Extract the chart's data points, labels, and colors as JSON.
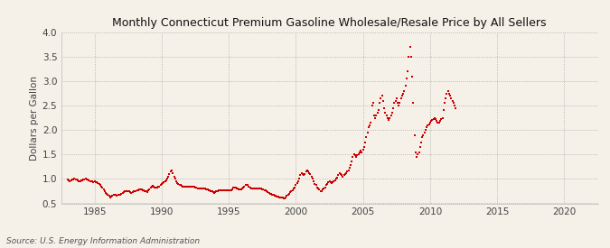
{
  "title": "Monthly Connecticut Premium Gasoline Wholesale/Resale Price by All Sellers",
  "ylabel": "Dollars per Gallon",
  "source": "Source: U.S. Energy Information Administration",
  "background_color": "#f5f0e8",
  "plot_bg_color": "#f5f0e8",
  "marker_color": "#cc0000",
  "xlim": [
    1982.5,
    2022.5
  ],
  "ylim": [
    0.5,
    4.0
  ],
  "xticks": [
    1985,
    1990,
    1995,
    2000,
    2005,
    2010,
    2015,
    2020
  ],
  "yticks": [
    0.5,
    1.0,
    1.5,
    2.0,
    2.5,
    3.0,
    3.5,
    4.0
  ],
  "data": [
    [
      1983.0,
      0.98
    ],
    [
      1983.08,
      0.97
    ],
    [
      1983.17,
      0.96
    ],
    [
      1983.25,
      0.97
    ],
    [
      1983.33,
      0.98
    ],
    [
      1983.42,
      0.99
    ],
    [
      1983.5,
      1.0
    ],
    [
      1983.58,
      0.99
    ],
    [
      1983.67,
      0.98
    ],
    [
      1983.75,
      0.97
    ],
    [
      1983.83,
      0.96
    ],
    [
      1983.92,
      0.95
    ],
    [
      1984.0,
      0.97
    ],
    [
      1984.08,
      0.97
    ],
    [
      1984.17,
      0.98
    ],
    [
      1984.25,
      0.99
    ],
    [
      1984.33,
      1.0
    ],
    [
      1984.42,
      0.99
    ],
    [
      1984.5,
      0.98
    ],
    [
      1984.58,
      0.97
    ],
    [
      1984.67,
      0.96
    ],
    [
      1984.75,
      0.96
    ],
    [
      1984.83,
      0.95
    ],
    [
      1984.92,
      0.94
    ],
    [
      1985.0,
      0.95
    ],
    [
      1985.08,
      0.94
    ],
    [
      1985.17,
      0.93
    ],
    [
      1985.25,
      0.92
    ],
    [
      1985.33,
      0.9
    ],
    [
      1985.42,
      0.88
    ],
    [
      1985.5,
      0.85
    ],
    [
      1985.58,
      0.82
    ],
    [
      1985.67,
      0.78
    ],
    [
      1985.75,
      0.74
    ],
    [
      1985.83,
      0.72
    ],
    [
      1985.92,
      0.7
    ],
    [
      1986.0,
      0.68
    ],
    [
      1986.08,
      0.65
    ],
    [
      1986.17,
      0.62
    ],
    [
      1986.25,
      0.63
    ],
    [
      1986.33,
      0.65
    ],
    [
      1986.42,
      0.67
    ],
    [
      1986.5,
      0.68
    ],
    [
      1986.58,
      0.67
    ],
    [
      1986.67,
      0.66
    ],
    [
      1986.75,
      0.67
    ],
    [
      1986.83,
      0.68
    ],
    [
      1986.92,
      0.68
    ],
    [
      1987.0,
      0.7
    ],
    [
      1987.08,
      0.72
    ],
    [
      1987.17,
      0.73
    ],
    [
      1987.25,
      0.74
    ],
    [
      1987.33,
      0.74
    ],
    [
      1987.42,
      0.75
    ],
    [
      1987.5,
      0.75
    ],
    [
      1987.58,
      0.74
    ],
    [
      1987.67,
      0.73
    ],
    [
      1987.75,
      0.72
    ],
    [
      1987.83,
      0.73
    ],
    [
      1987.92,
      0.74
    ],
    [
      1988.0,
      0.75
    ],
    [
      1988.08,
      0.75
    ],
    [
      1988.17,
      0.76
    ],
    [
      1988.25,
      0.77
    ],
    [
      1988.33,
      0.78
    ],
    [
      1988.42,
      0.79
    ],
    [
      1988.5,
      0.78
    ],
    [
      1988.58,
      0.77
    ],
    [
      1988.67,
      0.76
    ],
    [
      1988.75,
      0.75
    ],
    [
      1988.83,
      0.74
    ],
    [
      1988.92,
      0.73
    ],
    [
      1989.0,
      0.76
    ],
    [
      1989.08,
      0.79
    ],
    [
      1989.17,
      0.82
    ],
    [
      1989.25,
      0.85
    ],
    [
      1989.33,
      0.86
    ],
    [
      1989.42,
      0.85
    ],
    [
      1989.5,
      0.83
    ],
    [
      1989.58,
      0.82
    ],
    [
      1989.67,
      0.83
    ],
    [
      1989.75,
      0.84
    ],
    [
      1989.83,
      0.85
    ],
    [
      1989.92,
      0.87
    ],
    [
      1990.0,
      0.9
    ],
    [
      1990.08,
      0.92
    ],
    [
      1990.17,
      0.93
    ],
    [
      1990.25,
      0.95
    ],
    [
      1990.33,
      0.97
    ],
    [
      1990.42,
      1.0
    ],
    [
      1990.5,
      1.05
    ],
    [
      1990.58,
      1.1
    ],
    [
      1990.67,
      1.15
    ],
    [
      1990.75,
      1.18
    ],
    [
      1990.83,
      1.12
    ],
    [
      1990.92,
      1.05
    ],
    [
      1991.0,
      1.0
    ],
    [
      1991.08,
      0.95
    ],
    [
      1991.17,
      0.92
    ],
    [
      1991.25,
      0.9
    ],
    [
      1991.33,
      0.88
    ],
    [
      1991.42,
      0.87
    ],
    [
      1991.5,
      0.86
    ],
    [
      1991.58,
      0.85
    ],
    [
      1991.67,
      0.84
    ],
    [
      1991.75,
      0.84
    ],
    [
      1991.83,
      0.84
    ],
    [
      1991.92,
      0.84
    ],
    [
      1992.0,
      0.84
    ],
    [
      1992.08,
      0.84
    ],
    [
      1992.17,
      0.85
    ],
    [
      1992.25,
      0.85
    ],
    [
      1992.33,
      0.85
    ],
    [
      1992.42,
      0.84
    ],
    [
      1992.5,
      0.83
    ],
    [
      1992.58,
      0.82
    ],
    [
      1992.67,
      0.81
    ],
    [
      1992.75,
      0.8
    ],
    [
      1992.83,
      0.8
    ],
    [
      1992.92,
      0.8
    ],
    [
      1993.0,
      0.8
    ],
    [
      1993.08,
      0.8
    ],
    [
      1993.17,
      0.8
    ],
    [
      1993.25,
      0.8
    ],
    [
      1993.33,
      0.79
    ],
    [
      1993.42,
      0.78
    ],
    [
      1993.5,
      0.77
    ],
    [
      1993.58,
      0.76
    ],
    [
      1993.67,
      0.75
    ],
    [
      1993.75,
      0.74
    ],
    [
      1993.83,
      0.73
    ],
    [
      1993.92,
      0.72
    ],
    [
      1994.0,
      0.73
    ],
    [
      1994.08,
      0.74
    ],
    [
      1994.17,
      0.75
    ],
    [
      1994.25,
      0.76
    ],
    [
      1994.33,
      0.77
    ],
    [
      1994.42,
      0.77
    ],
    [
      1994.5,
      0.77
    ],
    [
      1994.58,
      0.77
    ],
    [
      1994.67,
      0.77
    ],
    [
      1994.75,
      0.77
    ],
    [
      1994.83,
      0.77
    ],
    [
      1994.92,
      0.76
    ],
    [
      1995.0,
      0.76
    ],
    [
      1995.08,
      0.76
    ],
    [
      1995.17,
      0.77
    ],
    [
      1995.25,
      0.78
    ],
    [
      1995.33,
      0.82
    ],
    [
      1995.42,
      0.83
    ],
    [
      1995.5,
      0.82
    ],
    [
      1995.58,
      0.81
    ],
    [
      1995.67,
      0.8
    ],
    [
      1995.75,
      0.79
    ],
    [
      1995.83,
      0.78
    ],
    [
      1995.92,
      0.78
    ],
    [
      1996.0,
      0.8
    ],
    [
      1996.08,
      0.82
    ],
    [
      1996.17,
      0.84
    ],
    [
      1996.25,
      0.87
    ],
    [
      1996.33,
      0.88
    ],
    [
      1996.42,
      0.87
    ],
    [
      1996.5,
      0.85
    ],
    [
      1996.58,
      0.83
    ],
    [
      1996.67,
      0.81
    ],
    [
      1996.75,
      0.8
    ],
    [
      1996.83,
      0.8
    ],
    [
      1996.92,
      0.8
    ],
    [
      1997.0,
      0.8
    ],
    [
      1997.08,
      0.8
    ],
    [
      1997.17,
      0.8
    ],
    [
      1997.25,
      0.8
    ],
    [
      1997.33,
      0.8
    ],
    [
      1997.42,
      0.8
    ],
    [
      1997.5,
      0.79
    ],
    [
      1997.58,
      0.78
    ],
    [
      1997.67,
      0.77
    ],
    [
      1997.75,
      0.76
    ],
    [
      1997.83,
      0.75
    ],
    [
      1997.92,
      0.73
    ],
    [
      1998.0,
      0.71
    ],
    [
      1998.08,
      0.7
    ],
    [
      1998.17,
      0.69
    ],
    [
      1998.25,
      0.68
    ],
    [
      1998.33,
      0.67
    ],
    [
      1998.42,
      0.66
    ],
    [
      1998.5,
      0.65
    ],
    [
      1998.58,
      0.64
    ],
    [
      1998.67,
      0.63
    ],
    [
      1998.75,
      0.62
    ],
    [
      1998.83,
      0.62
    ],
    [
      1998.92,
      0.62
    ],
    [
      1999.0,
      0.62
    ],
    [
      1999.08,
      0.61
    ],
    [
      1999.17,
      0.6
    ],
    [
      1999.25,
      0.62
    ],
    [
      1999.33,
      0.65
    ],
    [
      1999.42,
      0.68
    ],
    [
      1999.5,
      0.7
    ],
    [
      1999.58,
      0.73
    ],
    [
      1999.67,
      0.75
    ],
    [
      1999.75,
      0.77
    ],
    [
      1999.83,
      0.8
    ],
    [
      1999.92,
      0.83
    ],
    [
      2000.0,
      0.88
    ],
    [
      2000.08,
      0.92
    ],
    [
      2000.17,
      0.95
    ],
    [
      2000.25,
      1.0
    ],
    [
      2000.33,
      1.08
    ],
    [
      2000.42,
      1.12
    ],
    [
      2000.5,
      1.1
    ],
    [
      2000.58,
      1.08
    ],
    [
      2000.67,
      1.1
    ],
    [
      2000.75,
      1.15
    ],
    [
      2000.83,
      1.18
    ],
    [
      2000.92,
      1.15
    ],
    [
      2001.0,
      1.12
    ],
    [
      2001.08,
      1.1
    ],
    [
      2001.17,
      1.05
    ],
    [
      2001.25,
      1.0
    ],
    [
      2001.33,
      0.95
    ],
    [
      2001.42,
      0.9
    ],
    [
      2001.5,
      0.88
    ],
    [
      2001.58,
      0.83
    ],
    [
      2001.67,
      0.8
    ],
    [
      2001.75,
      0.78
    ],
    [
      2001.83,
      0.75
    ],
    [
      2001.92,
      0.75
    ],
    [
      2002.0,
      0.78
    ],
    [
      2002.08,
      0.8
    ],
    [
      2002.17,
      0.83
    ],
    [
      2002.25,
      0.87
    ],
    [
      2002.33,
      0.9
    ],
    [
      2002.42,
      0.93
    ],
    [
      2002.5,
      0.95
    ],
    [
      2002.58,
      0.93
    ],
    [
      2002.67,
      0.92
    ],
    [
      2002.75,
      0.93
    ],
    [
      2002.83,
      0.95
    ],
    [
      2002.92,
      0.97
    ],
    [
      2003.0,
      1.0
    ],
    [
      2003.08,
      1.03
    ],
    [
      2003.17,
      1.08
    ],
    [
      2003.25,
      1.12
    ],
    [
      2003.33,
      1.1
    ],
    [
      2003.42,
      1.08
    ],
    [
      2003.5,
      1.05
    ],
    [
      2003.58,
      1.08
    ],
    [
      2003.67,
      1.1
    ],
    [
      2003.75,
      1.12
    ],
    [
      2003.83,
      1.15
    ],
    [
      2003.92,
      1.18
    ],
    [
      2004.0,
      1.22
    ],
    [
      2004.08,
      1.28
    ],
    [
      2004.17,
      1.35
    ],
    [
      2004.25,
      1.45
    ],
    [
      2004.33,
      1.5
    ],
    [
      2004.42,
      1.48
    ],
    [
      2004.5,
      1.45
    ],
    [
      2004.58,
      1.48
    ],
    [
      2004.67,
      1.5
    ],
    [
      2004.75,
      1.55
    ],
    [
      2004.83,
      1.58
    ],
    [
      2004.92,
      1.55
    ],
    [
      2005.0,
      1.6
    ],
    [
      2005.08,
      1.65
    ],
    [
      2005.17,
      1.75
    ],
    [
      2005.25,
      1.85
    ],
    [
      2005.33,
      1.95
    ],
    [
      2005.42,
      2.05
    ],
    [
      2005.5,
      2.1
    ],
    [
      2005.58,
      2.15
    ],
    [
      2005.67,
      2.5
    ],
    [
      2005.75,
      2.55
    ],
    [
      2005.83,
      2.3
    ],
    [
      2005.92,
      2.25
    ],
    [
      2006.0,
      2.3
    ],
    [
      2006.08,
      2.35
    ],
    [
      2006.17,
      2.4
    ],
    [
      2006.25,
      2.55
    ],
    [
      2006.33,
      2.65
    ],
    [
      2006.42,
      2.7
    ],
    [
      2006.5,
      2.6
    ],
    [
      2006.58,
      2.45
    ],
    [
      2006.67,
      2.35
    ],
    [
      2006.75,
      2.3
    ],
    [
      2006.83,
      2.25
    ],
    [
      2006.92,
      2.2
    ],
    [
      2007.0,
      2.25
    ],
    [
      2007.08,
      2.3
    ],
    [
      2007.17,
      2.35
    ],
    [
      2007.25,
      2.45
    ],
    [
      2007.33,
      2.55
    ],
    [
      2007.42,
      2.6
    ],
    [
      2007.5,
      2.65
    ],
    [
      2007.58,
      2.55
    ],
    [
      2007.67,
      2.5
    ],
    [
      2007.75,
      2.55
    ],
    [
      2007.83,
      2.65
    ],
    [
      2007.92,
      2.7
    ],
    [
      2008.0,
      2.75
    ],
    [
      2008.08,
      2.8
    ],
    [
      2008.17,
      2.9
    ],
    [
      2008.25,
      3.05
    ],
    [
      2008.33,
      3.2
    ],
    [
      2008.42,
      3.5
    ],
    [
      2008.5,
      3.7
    ],
    [
      2008.58,
      3.5
    ],
    [
      2008.67,
      3.1
    ],
    [
      2008.75,
      2.55
    ],
    [
      2008.83,
      1.9
    ],
    [
      2008.92,
      1.55
    ],
    [
      2009.0,
      1.45
    ],
    [
      2009.08,
      1.5
    ],
    [
      2009.17,
      1.55
    ],
    [
      2009.25,
      1.65
    ],
    [
      2009.33,
      1.75
    ],
    [
      2009.42,
      1.85
    ],
    [
      2009.5,
      1.9
    ],
    [
      2009.58,
      1.95
    ],
    [
      2009.67,
      2.0
    ],
    [
      2009.75,
      2.05
    ],
    [
      2009.83,
      2.1
    ],
    [
      2009.92,
      2.12
    ],
    [
      2010.0,
      2.15
    ],
    [
      2010.08,
      2.18
    ],
    [
      2010.17,
      2.2
    ],
    [
      2010.25,
      2.22
    ],
    [
      2010.33,
      2.25
    ],
    [
      2010.42,
      2.22
    ],
    [
      2010.5,
      2.18
    ],
    [
      2010.58,
      2.15
    ],
    [
      2010.67,
      2.15
    ],
    [
      2010.75,
      2.18
    ],
    [
      2010.83,
      2.22
    ],
    [
      2010.92,
      2.25
    ],
    [
      2011.0,
      2.4
    ],
    [
      2011.08,
      2.55
    ],
    [
      2011.17,
      2.65
    ],
    [
      2011.25,
      2.75
    ],
    [
      2011.33,
      2.8
    ],
    [
      2011.42,
      2.75
    ],
    [
      2011.5,
      2.7
    ],
    [
      2011.58,
      2.65
    ],
    [
      2011.67,
      2.6
    ],
    [
      2011.75,
      2.55
    ],
    [
      2011.83,
      2.5
    ],
    [
      2011.92,
      2.45
    ]
  ]
}
